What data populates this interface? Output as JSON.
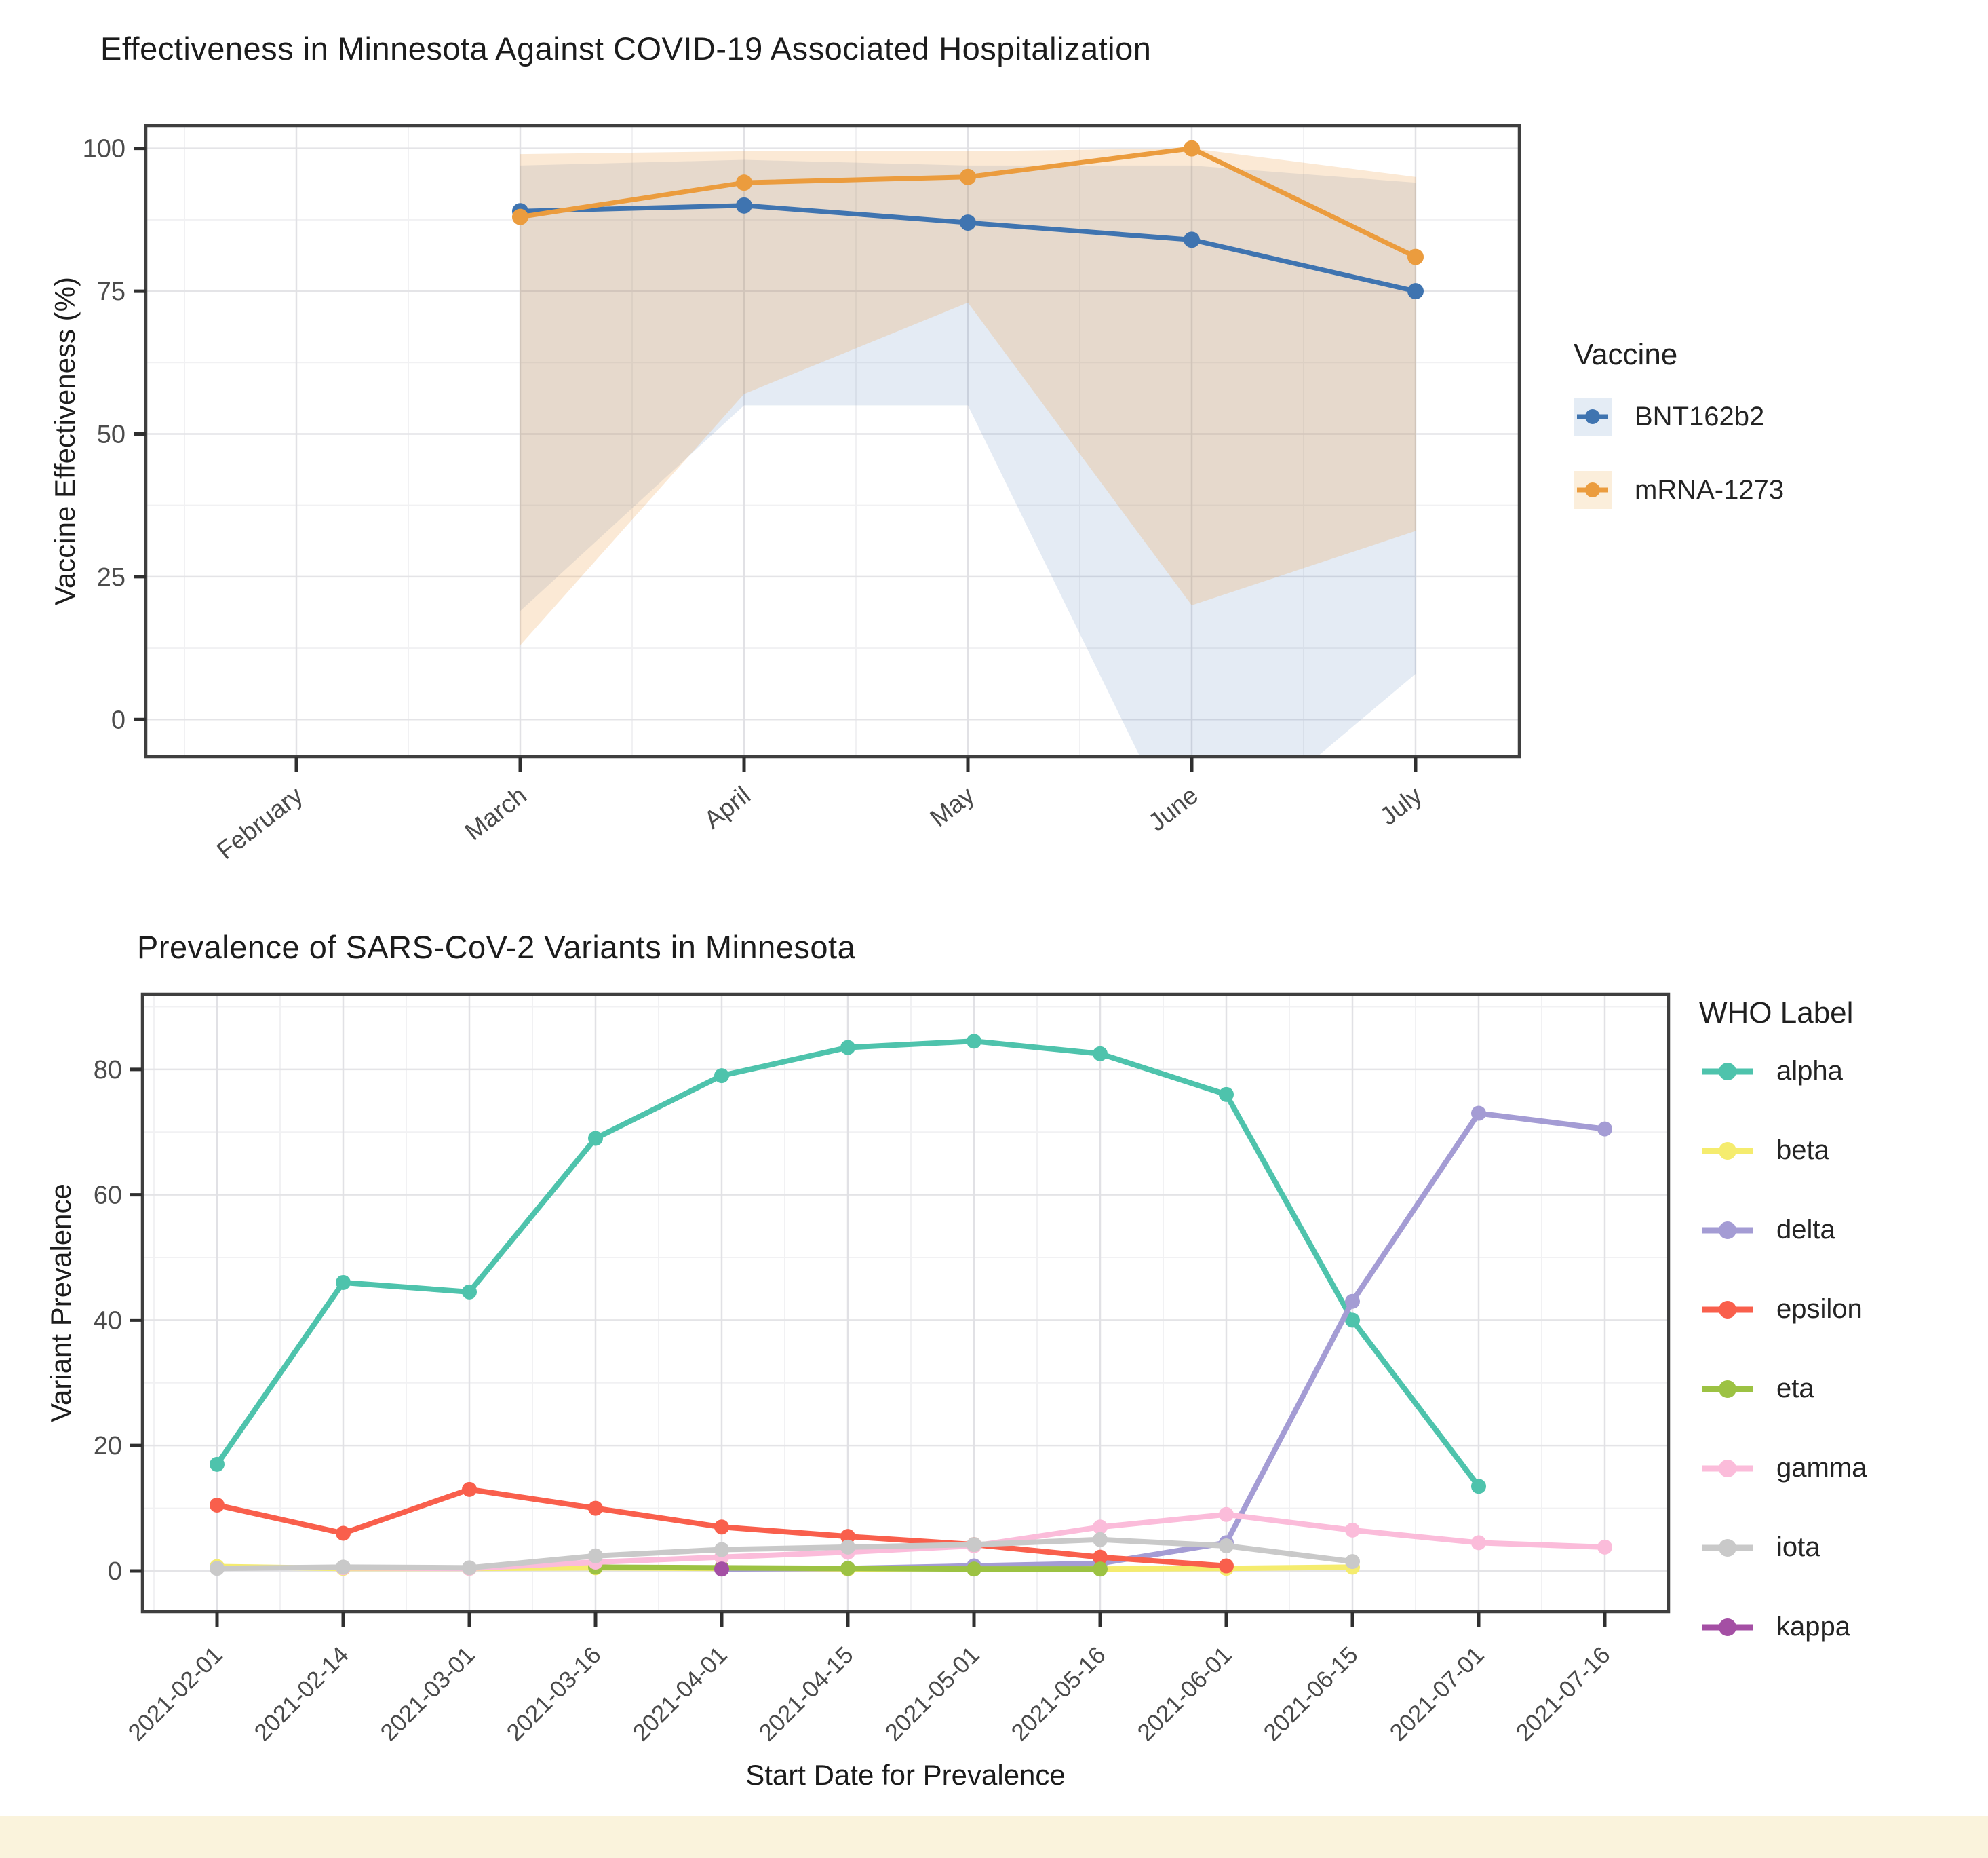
{
  "page": {
    "footer_highlight_color": "#faf3dc"
  },
  "chart_data": [
    {
      "type": "line",
      "title": "Effectiveness in Minnesota Against COVID-19 Associated Hospitalization",
      "xlabel": "",
      "ylabel": "Vaccine Effectiveness (%)",
      "x_ticklabels": [
        "February",
        "March",
        "April",
        "May",
        "June",
        "July"
      ],
      "yticks": [
        0,
        25,
        50,
        75,
        100
      ],
      "ylim": [
        -6.5,
        104
      ],
      "grid": true,
      "legend": {
        "title": "Vaccine",
        "position": "right"
      },
      "series": [
        {
          "name": "BNT162b2",
          "color": "#3f74b0",
          "fill": "#e4ecf5",
          "x_start_index": 1,
          "x": [
            "March",
            "April",
            "May",
            "June",
            "July"
          ],
          "values": [
            89,
            90,
            87,
            84,
            75
          ],
          "ci_lower": [
            19,
            55,
            55,
            -25,
            8
          ],
          "ci_upper": [
            97,
            98,
            97,
            97,
            94
          ]
        },
        {
          "name": "mRNA-1273",
          "color": "#eb9c3e",
          "fill": "#fbeedb",
          "x_start_index": 1,
          "x": [
            "March",
            "April",
            "May",
            "June",
            "July"
          ],
          "values": [
            88,
            94,
            95,
            100,
            81
          ],
          "ci_lower": [
            13,
            57,
            73,
            20,
            33
          ],
          "ci_upper": [
            99,
            99.5,
            99.5,
            100,
            95
          ]
        }
      ]
    },
    {
      "type": "line",
      "title": "Prevalence of SARS-CoV-2 Variants in Minnesota",
      "xlabel": "Start Date for Prevalence",
      "ylabel": "Variant Prevalence",
      "x_ticklabels": [
        "2021-02-01",
        "2021-02-14",
        "2021-03-01",
        "2021-03-16",
        "2021-04-01",
        "2021-04-15",
        "2021-05-01",
        "2021-05-16",
        "2021-06-01",
        "2021-06-15",
        "2021-07-01",
        "2021-07-16"
      ],
      "yticks": [
        0,
        20,
        40,
        60,
        80
      ],
      "ylim": [
        -6.5,
        92
      ],
      "grid": true,
      "legend": {
        "title": "WHO Label",
        "position": "right"
      },
      "series": [
        {
          "name": "alpha",
          "color": "#4ec3ac",
          "values": [
            17,
            46,
            44.5,
            69,
            79,
            83.5,
            84.5,
            82.5,
            76,
            40,
            13.5,
            null
          ]
        },
        {
          "name": "beta",
          "color": "#f5ec6e",
          "values": [
            0.7,
            0.4,
            0.4,
            0.5,
            0.4,
            0.3,
            0.4,
            0.3,
            0.4,
            0.6,
            null,
            null
          ]
        },
        {
          "name": "delta",
          "color": "#a49cd4",
          "values": [
            null,
            null,
            null,
            null,
            0.3,
            0.4,
            0.8,
            1.2,
            4.5,
            43,
            73,
            70.5
          ]
        },
        {
          "name": "epsilon",
          "color": "#f95f4c",
          "values": [
            10.5,
            6,
            13,
            10,
            7,
            5.5,
            4.2,
            2.2,
            0.8,
            null,
            null,
            null
          ]
        },
        {
          "name": "eta",
          "color": "#9cc243",
          "values": [
            null,
            null,
            null,
            0.6,
            0.5,
            0.4,
            0.3,
            0.3,
            null,
            null,
            null,
            null
          ]
        },
        {
          "name": "gamma",
          "color": "#fbbcda",
          "values": [
            null,
            0.5,
            0.4,
            1.4,
            2.2,
            3,
            4,
            7,
            9,
            6.5,
            4.5,
            3.8
          ]
        },
        {
          "name": "iota",
          "color": "#c9c9c9",
          "values": [
            0.4,
            0.6,
            0.5,
            2.4,
            3.4,
            3.8,
            4.2,
            5,
            4,
            1.5,
            null,
            null
          ]
        },
        {
          "name": "kappa",
          "color": "#a44fa4",
          "values": [
            null,
            null,
            null,
            null,
            0.3,
            null,
            null,
            null,
            null,
            null,
            null,
            null
          ]
        }
      ]
    }
  ]
}
